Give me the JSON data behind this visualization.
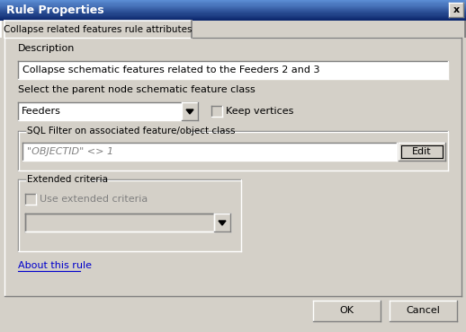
{
  "title": "Rule Properties",
  "bg_color": "#d4d0c8",
  "tab_label": "Collapse related features rule attributes",
  "description_label": "Description",
  "description_text": "Collapse schematic features related to the Feeders 2 and 3",
  "parent_label": "Select the parent node schematic feature class",
  "dropdown_value": "Feeders",
  "keep_vertices_label": "Keep vertices",
  "sql_filter_label": "SQL Filter on associated feature/object class",
  "sql_filter_text": "\"OBJECTID\" <> 1",
  "edit_button_label": "Edit",
  "extended_label": "Extended criteria",
  "use_extended_label": "Use extended criteria",
  "about_link": "About this rule",
  "ok_label": "OK",
  "cancel_label": "Cancel",
  "link_color": "#0000cc",
  "title_bar_top": "#5b8dd4",
  "title_bar_bot": "#0a246a"
}
